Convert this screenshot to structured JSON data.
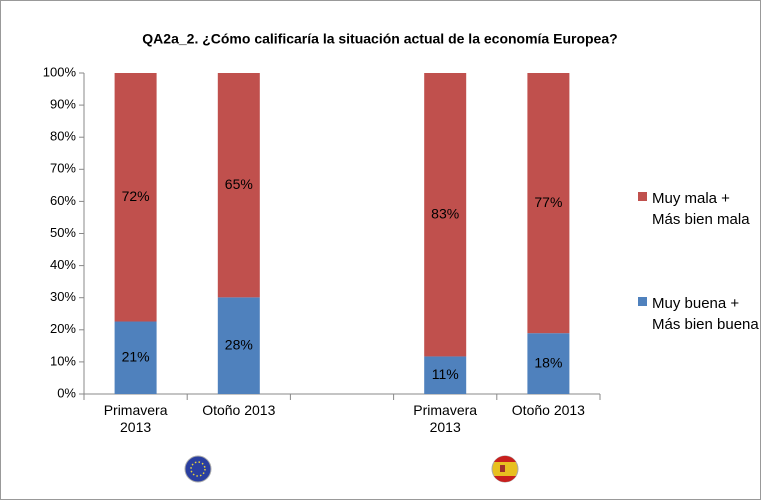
{
  "chart_data": {
    "type": "stacked100",
    "title": "QA2a_2. ¿Cómo calificaría la situación actual de la economía Europea?",
    "categories": [
      "Primavera 2013",
      "Otoño 2013",
      null,
      "Primavera 2013",
      "Otoño 2013"
    ],
    "series": [
      {
        "name": "Muy buena + Más bien buena",
        "color": "#4f81bd",
        "values": [
          21,
          28,
          null,
          11,
          18
        ],
        "value_labels": [
          "21%",
          "28%",
          null,
          "11%",
          "18%"
        ]
      },
      {
        "name": "Muy mala + Más bien mala",
        "color": "#c0504d",
        "values": [
          72,
          65,
          null,
          83,
          77
        ],
        "value_labels": [
          "72%",
          "65%",
          null,
          "83%",
          "77%"
        ]
      }
    ],
    "ylim": [
      0,
      100
    ],
    "yticks": [
      {
        "value": 0,
        "label": "0%"
      },
      {
        "value": 10,
        "label": "10%"
      },
      {
        "value": 20,
        "label": "20%"
      },
      {
        "value": 30,
        "label": "30%"
      },
      {
        "value": 40,
        "label": "40%"
      },
      {
        "value": 50,
        "label": "50%"
      },
      {
        "value": 60,
        "label": "60%"
      },
      {
        "value": 70,
        "label": "70%"
      },
      {
        "value": 80,
        "label": "80%"
      },
      {
        "value": 90,
        "label": "90%"
      },
      {
        "value": 100,
        "label": "100%"
      }
    ],
    "legend": "right",
    "grid": false
  }
}
